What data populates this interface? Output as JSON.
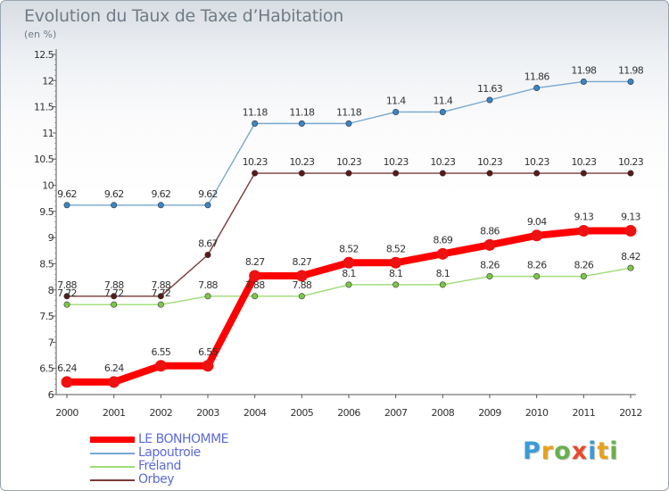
{
  "header": {
    "title": "Evolution du Taux de Taxe d’Habitation",
    "subtitle": "(en %)"
  },
  "logo": {
    "text": "Proxiti",
    "colors": [
      "#3a9bd6",
      "#e8a21a",
      "#6ab04c",
      "#e84a2e",
      "#3a9bd6",
      "#e8a21a",
      "#6ab04c"
    ]
  },
  "chart_data": {
    "type": "line",
    "categories": [
      "2000",
      "2001",
      "2002",
      "2003",
      "2004",
      "2005",
      "2006",
      "2007",
      "2008",
      "2009",
      "2010",
      "2011",
      "2012"
    ],
    "ylim": [
      6,
      12.5
    ],
    "yticks": [
      "6",
      "6.5",
      "7",
      "7.5",
      "8",
      "8.5",
      "9",
      "9.5",
      "10",
      "10.5",
      "11",
      "11.5",
      "12",
      "12.5"
    ],
    "grid": false,
    "legend_position": "bottom-left",
    "series": [
      {
        "name": "LE BONHOMME",
        "color": "#ff0000",
        "marker": "#ee1111",
        "values": [
          6.24,
          6.24,
          6.55,
          6.55,
          8.27,
          8.27,
          8.52,
          8.52,
          8.69,
          8.86,
          9.04,
          9.13,
          9.13
        ],
        "labels": [
          "6.24",
          "6.24",
          "6.55",
          "6.55",
          "8.27",
          "8.27",
          "8.52",
          "8.52",
          "8.69",
          "8.86",
          "9.04",
          "9.13",
          "9.13"
        ]
      },
      {
        "name": "Lapoutroie",
        "color": "#78a8d0",
        "marker": "#3a85c8",
        "values": [
          9.62,
          9.62,
          9.62,
          9.62,
          11.18,
          11.18,
          11.18,
          11.4,
          11.4,
          11.63,
          11.86,
          11.98,
          11.98
        ],
        "labels": [
          "9.62",
          "9.62",
          "9.62",
          "9.62",
          "11.18",
          "11.18",
          "11.18",
          "11.4",
          "11.4",
          "11.63",
          "11.86",
          "11.98",
          "11.98"
        ]
      },
      {
        "name": "Fréland",
        "color": "#9cdc74",
        "marker": "#7cc846",
        "values": [
          7.72,
          7.72,
          7.72,
          7.88,
          7.88,
          7.88,
          8.1,
          8.1,
          8.1,
          8.26,
          8.26,
          8.26,
          8.42
        ],
        "labels": [
          "7.72",
          "7.72",
          "7.72",
          "7.88",
          "7.88",
          "7.88",
          "8.1",
          "8.1",
          "8.1",
          "8.26",
          "8.26",
          "8.26",
          "8.42"
        ]
      },
      {
        "name": "Orbey",
        "color": "#7a3a3a",
        "marker": "#5a1a1a",
        "values": [
          7.88,
          7.88,
          7.88,
          8.67,
          10.23,
          10.23,
          10.23,
          10.23,
          10.23,
          10.23,
          10.23,
          10.23,
          10.23
        ],
        "labels": [
          "7.88",
          "7.88",
          "7.88",
          "8.67",
          "10.23",
          "10.23",
          "10.23",
          "10.23",
          "10.23",
          "10.23",
          "10.23",
          "10.23",
          "10.23"
        ]
      }
    ]
  }
}
